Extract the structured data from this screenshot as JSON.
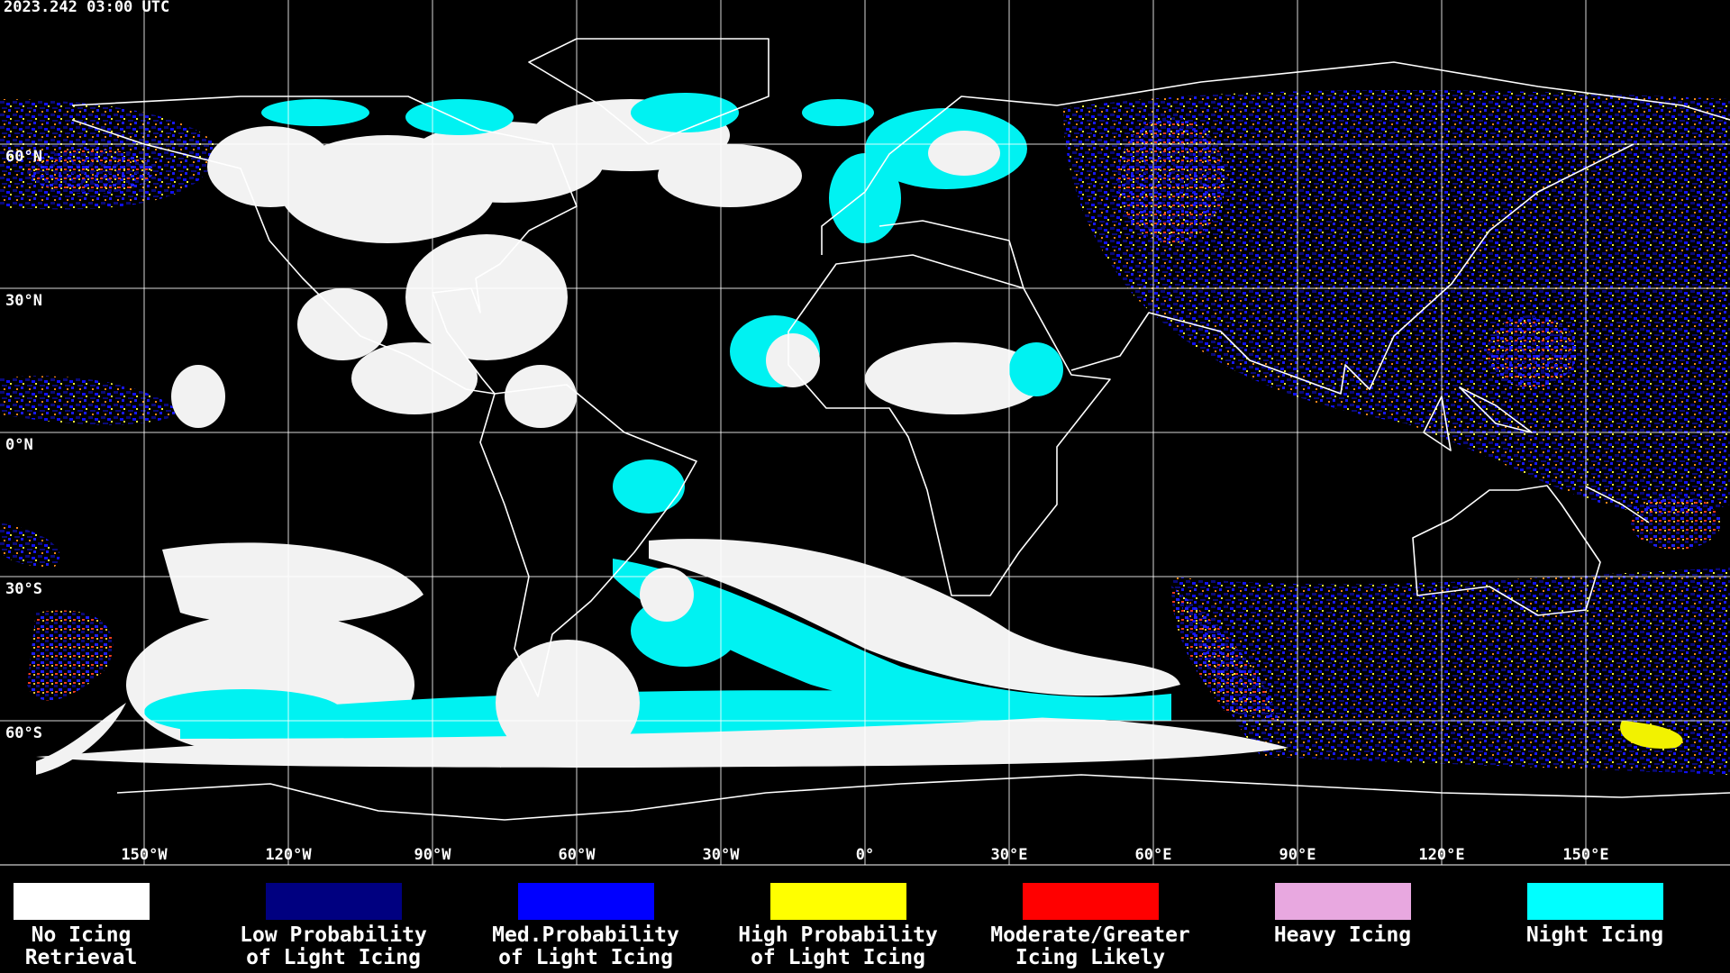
{
  "timestamp": "2023.242 03:00 UTC",
  "map": {
    "longitudes": [
      {
        "value": -150,
        "label": "150°W"
      },
      {
        "value": -120,
        "label": "120°W"
      },
      {
        "value": -90,
        "label": "90°W"
      },
      {
        "value": -60,
        "label": "60°W"
      },
      {
        "value": -30,
        "label": "30°W"
      },
      {
        "value": 0,
        "label": "0°"
      },
      {
        "value": 30,
        "label": "30°E"
      },
      {
        "value": 60,
        "label": "60°E"
      },
      {
        "value": 90,
        "label": "90°E"
      },
      {
        "value": 120,
        "label": "120°E"
      },
      {
        "value": 150,
        "label": "150°E"
      }
    ],
    "latitudes": [
      {
        "value": 60,
        "label": "60°N"
      },
      {
        "value": 30,
        "label": "30°N"
      },
      {
        "value": 0,
        "label": "0°N"
      },
      {
        "value": -30,
        "label": "30°S"
      },
      {
        "value": -60,
        "label": "60°S"
      }
    ]
  },
  "legend": {
    "items": [
      {
        "color": "#ffffff",
        "lines": [
          "No Icing",
          "Retrieval"
        ]
      },
      {
        "color": "#000080",
        "lines": [
          "Low Probability",
          "of Light Icing"
        ]
      },
      {
        "color": "#0000ff",
        "lines": [
          "Med.Probability",
          "of Light Icing"
        ]
      },
      {
        "color": "#ffff00",
        "lines": [
          "High Probability",
          "of Light Icing"
        ]
      },
      {
        "color": "#ff0000",
        "lines": [
          "Moderate/Greater",
          "Icing Likely"
        ]
      },
      {
        "color": "#e8a8e0",
        "lines": [
          "Heavy Icing"
        ]
      },
      {
        "color": "#00ffff",
        "lines": [
          "Night Icing"
        ]
      }
    ]
  }
}
